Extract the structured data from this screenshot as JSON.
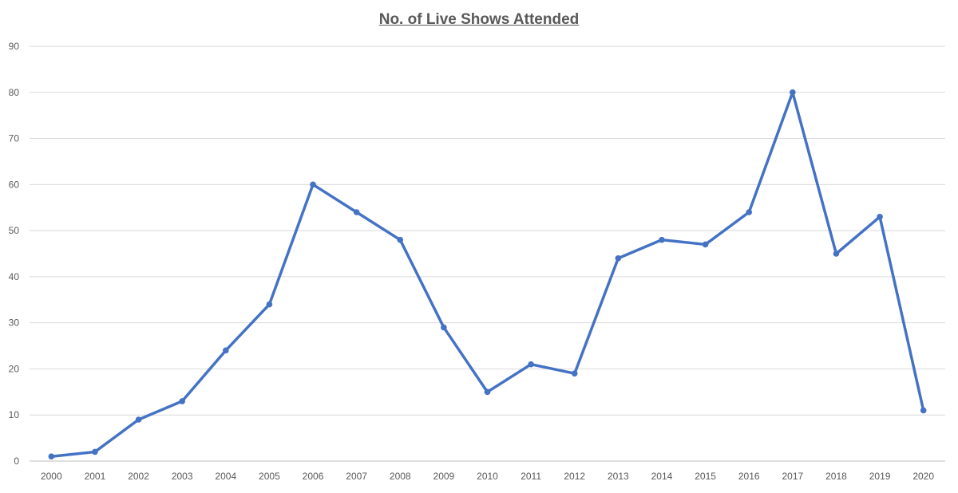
{
  "chart_data": {
    "type": "line",
    "title": "No. of Live Shows Attended",
    "xlabel": "",
    "ylabel": "",
    "ylim": [
      0,
      90
    ],
    "yticks": [
      0,
      10,
      20,
      30,
      40,
      50,
      60,
      70,
      80,
      90
    ],
    "x": [
      "2000",
      "2001",
      "2002",
      "2003",
      "2004",
      "2005",
      "2006",
      "2007",
      "2008",
      "2009",
      "2010",
      "2011",
      "2012",
      "2013",
      "2014",
      "2015",
      "2016",
      "2017",
      "2018",
      "2019",
      "2020"
    ],
    "series": [
      {
        "values": [
          1,
          2,
          9,
          13,
          24,
          34,
          60,
          54,
          48,
          29,
          15,
          21,
          19,
          44,
          48,
          47,
          54,
          80,
          45,
          53,
          11
        ]
      }
    ],
    "grid": true,
    "legend": "none",
    "colors": {
      "line": "#4472C4",
      "grid": "#D9D9D9",
      "text": "#595959"
    }
  }
}
